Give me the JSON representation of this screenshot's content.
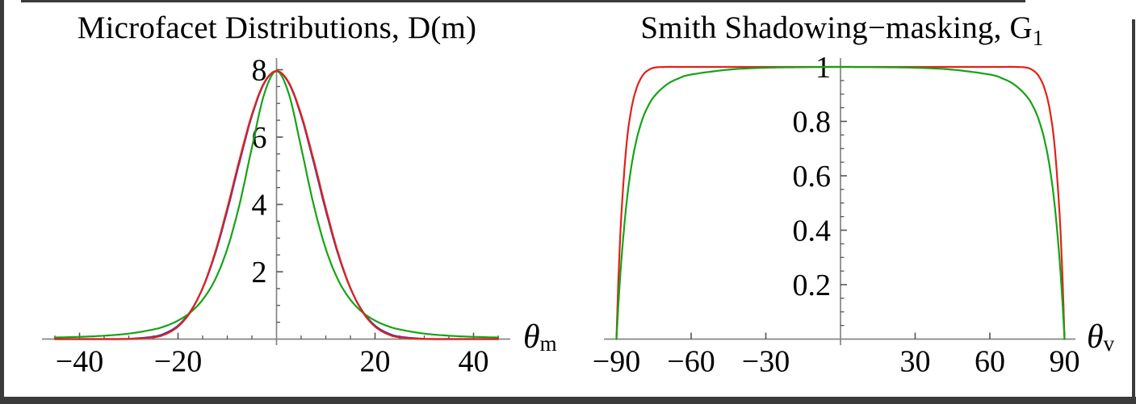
{
  "page": {
    "background": "#ffffff",
    "frame_color": "#3b3b3b",
    "axis_color": "#858585",
    "tick_color": "#555555",
    "text_color": "#000000"
  },
  "charts": [
    {
      "title_main": "Microfacet Distributions, D(m)",
      "title_sub": "",
      "x_axis_label": {
        "symbol": "θ",
        "subscript": "m"
      },
      "chart_data": {
        "type": "line",
        "title": "Microfacet Distributions, D(m)",
        "xlabel": "θm",
        "ylabel": "D(m)",
        "xlim": [
          -47.5,
          47.5
        ],
        "ylim": [
          0,
          8.35
        ],
        "grid": false,
        "legend": "none",
        "x_major_ticks": [
          -40,
          -20,
          20,
          40
        ],
        "x_tick_labels": [
          "−40",
          "−20",
          "20",
          "40"
        ],
        "x_minor": {
          "step": 5,
          "max": 45
        },
        "y_major_ticks": [
          2,
          4,
          6,
          8
        ],
        "y_tick_labels": [
          "2",
          "4",
          "6",
          "8"
        ],
        "y_minor": {
          "step": 0.5,
          "max": 8
        },
        "symmetric_about_x0": true,
        "x_samples": [
          0,
          2.5,
          5,
          7.5,
          10,
          12.5,
          15,
          17.5,
          20,
          22.5,
          25,
          30,
          35,
          40,
          45
        ],
        "series": [
          {
            "name": "blue",
            "color": "#2f2fd0",
            "values": [
              7.96,
              7.6,
              6.63,
              5.27,
              3.82,
              2.52,
              1.51,
              0.82,
              0.4,
              0.18,
              0.071,
              0.008,
              0.001,
              0,
              0
            ]
          },
          {
            "name": "green",
            "color": "#16a316",
            "values": [
              7.96,
              7.28,
              5.69,
              4.01,
              2.68,
              1.76,
              1.17,
              0.79,
              0.55,
              0.39,
              0.285,
              0.162,
              0.101,
              0.067,
              0.047
            ]
          },
          {
            "name": "red",
            "color": "#e02318",
            "values": [
              7.96,
              7.62,
              6.67,
              5.34,
              3.89,
              2.56,
              1.52,
              0.8,
              0.372,
              0.15,
              0.051,
              0.003,
              0,
              0,
              0
            ]
          }
        ]
      }
    },
    {
      "title_main": "Smith Shadowing−masking, G",
      "title_sub": "1",
      "x_axis_label": {
        "symbol": "θ",
        "subscript": "v"
      },
      "chart_data": {
        "type": "line",
        "title": "Smith Shadowing−masking, G1",
        "xlabel": "θv",
        "ylabel": "G1",
        "xlim": [
          -95,
          95
        ],
        "ylim": [
          0,
          1.03
        ],
        "grid": false,
        "legend": "none",
        "x_major_ticks": [
          -90,
          -60,
          -30,
          30,
          60,
          90
        ],
        "x_tick_labels": [
          "−90",
          "−60",
          "−30",
          "30",
          "60",
          "90"
        ],
        "x_minor": null,
        "y_major_ticks": [
          0.2,
          0.4,
          0.6,
          0.8,
          1
        ],
        "y_tick_labels": [
          "0.2",
          "0.4",
          "0.6",
          "0.8",
          "1"
        ],
        "y_minor": {
          "step": 0.05,
          "max": 1
        },
        "symmetric_about_x0": true,
        "x_samples": [
          0,
          15,
          30,
          45,
          60,
          65,
          70,
          75,
          78,
          80,
          82,
          84,
          86,
          88,
          89,
          89.5,
          90
        ],
        "series": [
          {
            "name": "red",
            "color": "#e02318",
            "values": [
              1,
              1,
              1,
              1,
              1,
              1,
              1,
              0.997,
              0.983,
              0.961,
              0.92,
              0.846,
              0.712,
              0.463,
              0.267,
              0.144,
              0
            ]
          },
          {
            "name": "green",
            "color": "#16a316",
            "values": [
              1,
              0.999,
              0.997,
              0.99,
              0.972,
              0.958,
              0.934,
              0.89,
              0.843,
              0.796,
              0.73,
              0.635,
              0.496,
              0.294,
              0.16,
              0.084,
              0
            ]
          }
        ]
      }
    }
  ]
}
